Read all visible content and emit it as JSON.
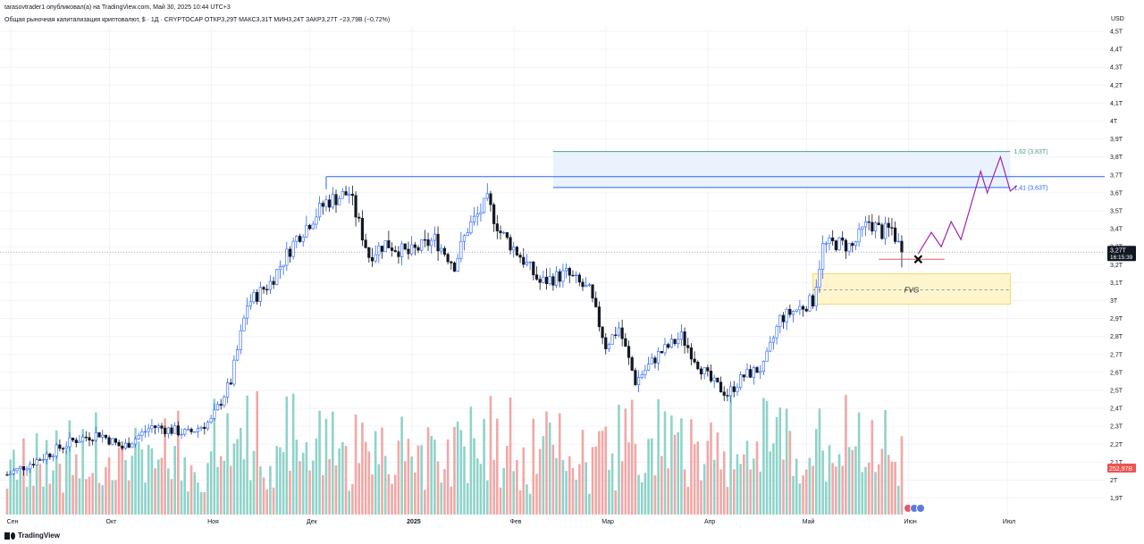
{
  "header": {
    "published": "tarasovtrader1 опубликовал(а) на TradingView.com, Май 30, 2025 10:44 UTC+3",
    "symbol_line": "Общая рыночная капитализация криптовалют, $ · 1Д · CRYPTOCAP  ОТКР3,29T  МАКС3,31T  МИН3,24T  ЗАКР3,27T  −23,79B (−0,72%)"
  },
  "axis_unit": "USD",
  "brand": "TradingView",
  "colors": {
    "up": "#26a69a",
    "down": "#131722",
    "up_vol": "#8fd3c9",
    "down_vol": "#f0a8a6",
    "blue": "#2962ff",
    "green_line": "#4a9e8e",
    "fvg": "#fff5cc",
    "purple": "#9c27b0",
    "price_tag": "#131722",
    "vol_tag": "#ef5350"
  },
  "chart_data": {
    "type": "candlestick",
    "title": "Общая рыночная капитализация криптовалют, $ · 1Д · CRYPTOCAP",
    "y_unit": "USD",
    "ylim": [
      1.85,
      4.55
    ],
    "y_ticks": [
      {
        "v": 4.5,
        "label": "4,5T"
      },
      {
        "v": 4.4,
        "label": "4,4T"
      },
      {
        "v": 4.3,
        "label": "4,3T"
      },
      {
        "v": 4.2,
        "label": "4,2T"
      },
      {
        "v": 4.1,
        "label": "4,1T"
      },
      {
        "v": 4.0,
        "label": "4T"
      },
      {
        "v": 3.9,
        "label": "3,9T"
      },
      {
        "v": 3.8,
        "label": "3,8T"
      },
      {
        "v": 3.7,
        "label": "3,7T"
      },
      {
        "v": 3.6,
        "label": "3,6T"
      },
      {
        "v": 3.5,
        "label": "3,5T"
      },
      {
        "v": 3.4,
        "label": "3,4T"
      },
      {
        "v": 3.3,
        "label": "3,3T"
      },
      {
        "v": 3.2,
        "label": "3,2T"
      },
      {
        "v": 3.1,
        "label": "3,1T"
      },
      {
        "v": 3.0,
        "label": "3T"
      },
      {
        "v": 2.9,
        "label": "2,9T"
      },
      {
        "v": 2.8,
        "label": "2,8T"
      },
      {
        "v": 2.7,
        "label": "2,7T"
      },
      {
        "v": 2.6,
        "label": "2,6T"
      },
      {
        "v": 2.5,
        "label": "2,5T"
      },
      {
        "v": 2.4,
        "label": "2,4T"
      },
      {
        "v": 2.3,
        "label": "2,3T"
      },
      {
        "v": 2.2,
        "label": "2,2T"
      },
      {
        "v": 2.1,
        "label": "2,1T"
      },
      {
        "v": 2.0,
        "label": "2T"
      },
      {
        "v": 1.9,
        "label": "1,9T"
      }
    ],
    "x_labels": [
      {
        "label": "Сен",
        "day": 0
      },
      {
        "label": "Окт",
        "day": 30
      },
      {
        "label": "Ноя",
        "day": 61
      },
      {
        "label": "Дек",
        "day": 91
      },
      {
        "label": "2025",
        "day": 122,
        "bold": true
      },
      {
        "label": "Фев",
        "day": 153
      },
      {
        "label": "Мар",
        "day": 181
      },
      {
        "label": "Апр",
        "day": 212
      },
      {
        "label": "Май",
        "day": 242
      },
      {
        "label": "Июн",
        "day": 273
      },
      {
        "label": "Июл",
        "day": 303
      }
    ],
    "trend_anchors": [
      [
        0,
        2.03
      ],
      [
        10,
        2.12
      ],
      [
        20,
        2.22
      ],
      [
        28,
        2.26
      ],
      [
        35,
        2.18
      ],
      [
        44,
        2.3
      ],
      [
        55,
        2.26
      ],
      [
        62,
        2.33
      ],
      [
        68,
        2.55
      ],
      [
        73,
        2.98
      ],
      [
        80,
        3.1
      ],
      [
        88,
        3.35
      ],
      [
        97,
        3.55
      ],
      [
        104,
        3.6
      ],
      [
        110,
        3.25
      ],
      [
        115,
        3.32
      ],
      [
        122,
        3.26
      ],
      [
        130,
        3.34
      ],
      [
        136,
        3.2
      ],
      [
        140,
        3.4
      ],
      [
        146,
        3.55
      ],
      [
        150,
        3.38
      ],
      [
        156,
        3.25
      ],
      [
        162,
        3.1
      ],
      [
        170,
        3.15
      ],
      [
        177,
        3.05
      ],
      [
        182,
        2.75
      ],
      [
        186,
        2.85
      ],
      [
        191,
        2.55
      ],
      [
        198,
        2.7
      ],
      [
        205,
        2.8
      ],
      [
        210,
        2.65
      ],
      [
        214,
        2.55
      ],
      [
        219,
        2.48
      ],
      [
        224,
        2.58
      ],
      [
        230,
        2.63
      ],
      [
        235,
        2.9
      ],
      [
        240,
        2.95
      ],
      [
        245,
        3.0
      ],
      [
        248,
        3.3
      ],
      [
        252,
        3.32
      ],
      [
        257,
        3.3
      ],
      [
        262,
        3.44
      ],
      [
        266,
        3.38
      ],
      [
        269,
        3.4
      ],
      [
        272,
        3.27
      ]
    ],
    "last_price": {
      "value": 3.27,
      "label": "3,27T",
      "countdown": "16:15:39"
    },
    "last_volume_label": "252,97B",
    "fib_levels": [
      {
        "ratio": "1,62",
        "value": 3.83,
        "label": "1,62 (3,83T)"
      },
      {
        "ratio": "1,41",
        "value": 3.63,
        "label": "1,41 (3,63T)"
      }
    ],
    "resistance_level": 3.69,
    "support_level": 3.23,
    "fvg_zone": {
      "label": "FVG",
      "top": 3.15,
      "bottom": 2.98,
      "mid": 3.06,
      "start_day": 245,
      "end_day": 305
    },
    "fib_zone": {
      "start_day": 166,
      "end_day": 305
    },
    "target_marker": {
      "day": 277,
      "value": 3.23
    },
    "projection_path": [
      [
        277,
        3.26
      ],
      [
        281,
        3.38
      ],
      [
        284,
        3.3
      ],
      [
        287,
        3.44
      ],
      [
        290,
        3.34
      ],
      [
        296,
        3.72
      ],
      [
        298,
        3.6
      ],
      [
        302,
        3.8
      ],
      [
        305,
        3.61
      ],
      [
        307,
        3.64
      ]
    ]
  }
}
